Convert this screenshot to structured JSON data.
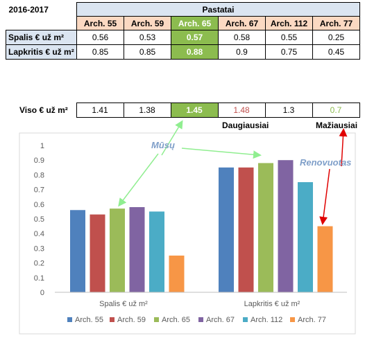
{
  "table": {
    "year": "2016-2017",
    "header": "Pastatai",
    "columns": [
      "Arch. 55",
      "Arch. 59",
      "Arch. 65",
      "Arch. 67",
      "Arch. 112",
      "Arch. 77"
    ],
    "rows": [
      {
        "label": "Spalis € už m²",
        "values": [
          "0.56",
          "0.53",
          "0.57",
          "0.58",
          "0.55",
          "0.25"
        ]
      },
      {
        "label": "Lapkritis € už m²",
        "values": [
          "0.85",
          "0.85",
          "0.88",
          "0.9",
          "0.75",
          "0.45"
        ]
      }
    ]
  },
  "totals": {
    "label": "Viso € už m²",
    "values": [
      "1.41",
      "1.38",
      "1.45",
      "1.48",
      "1.3",
      "0.7"
    ]
  },
  "notes": {
    "most": "Daugiausiai",
    "least": "Mažiausiai"
  },
  "callouts": {
    "ours": "Mūsų",
    "renovated": "Renovuotas"
  },
  "chart_data": {
    "type": "bar",
    "categories": [
      "Spalis € už m²",
      "Lapkritis € už m²"
    ],
    "series": [
      {
        "name": "Arch. 55",
        "values": [
          0.56,
          0.85
        ],
        "color": "#4f81bd"
      },
      {
        "name": "Arch. 59",
        "values": [
          0.53,
          0.85
        ],
        "color": "#c0504d"
      },
      {
        "name": "Arch. 65",
        "values": [
          0.57,
          0.88
        ],
        "color": "#9bbb59"
      },
      {
        "name": "Arch. 67",
        "values": [
          0.58,
          0.9
        ],
        "color": "#8064a2"
      },
      {
        "name": "Arch. 112",
        "values": [
          0.55,
          0.75
        ],
        "color": "#4bacc6"
      },
      {
        "name": "Arch. 77",
        "values": [
          0.25,
          0.45
        ],
        "color": "#f79646"
      }
    ],
    "ylim": [
      0,
      1
    ],
    "yticks": [
      "0",
      "0.1",
      "0.2",
      "0.3",
      "0.4",
      "0.5",
      "0.6",
      "0.7",
      "0.8",
      "0.9",
      "1"
    ],
    "grid": false,
    "legend": "bottom",
    "annotation_colors": {
      "ours": "#90ee90",
      "renovated": "#e00000",
      "callout_text": "#7f9fc9"
    }
  }
}
